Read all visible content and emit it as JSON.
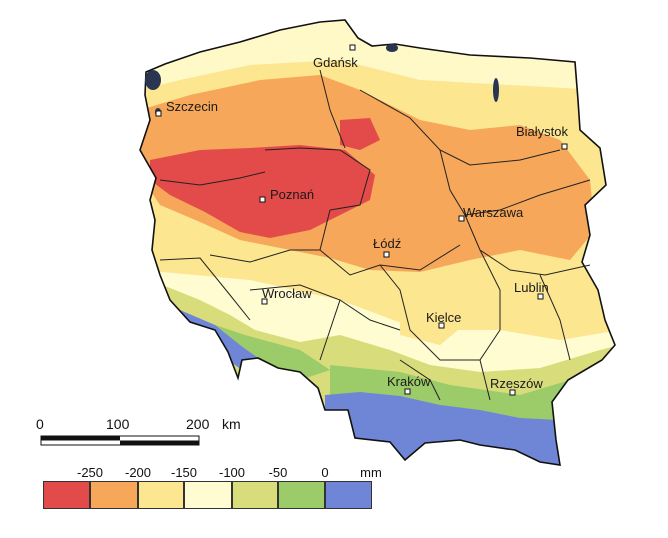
{
  "map": {
    "cities": [
      {
        "name": "Gdańsk"
      },
      {
        "name": "Szczecin"
      },
      {
        "name": "Białystok"
      },
      {
        "name": "Poznań"
      },
      {
        "name": "Warszawa"
      },
      {
        "name": "Łódź"
      },
      {
        "name": "Wrocław"
      },
      {
        "name": "Lublin"
      },
      {
        "name": "Kielce"
      },
      {
        "name": "Kraków"
      },
      {
        "name": "Rzeszów"
      }
    ]
  },
  "scale_bar": {
    "ticks": [
      "0",
      "100",
      "200"
    ],
    "unit": "km"
  },
  "legend": {
    "breaks": [
      "-250",
      "-200",
      "-150",
      "-100",
      "-50",
      "0"
    ],
    "unit": "mm",
    "colors": [
      "#e34a4a",
      "#f6a75a",
      "#fce68f",
      "#fefcd0",
      "#d9dc7a",
      "#9ccb6a",
      "#6f86d6"
    ]
  }
}
